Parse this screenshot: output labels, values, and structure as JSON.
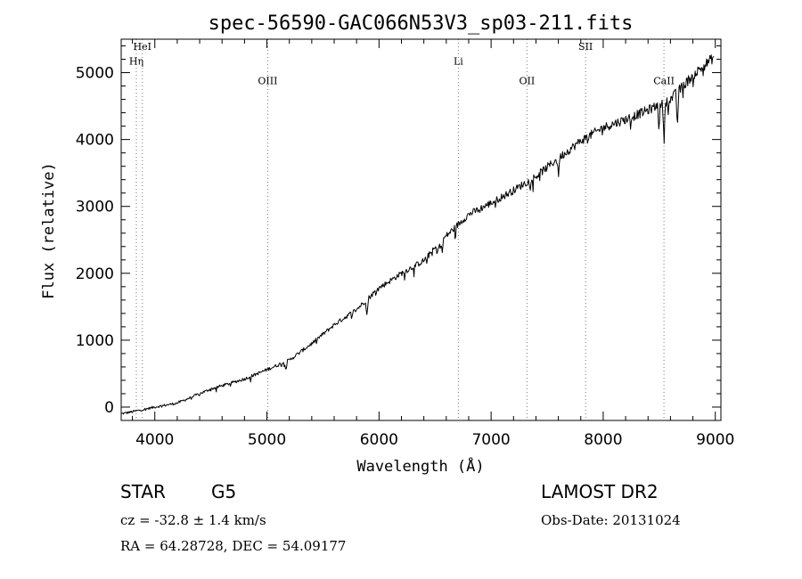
{
  "chart_data": {
    "type": "line",
    "title": "spec-56590-GAC066N53V3_sp03-211.fits",
    "xlabel": "Wavelength (Å)",
    "ylabel": "Flux (relative)",
    "xlim": [
      3700,
      9050
    ],
    "ylim": [
      -200,
      5500
    ],
    "xticks": [
      4000,
      5000,
      6000,
      7000,
      8000,
      9000
    ],
    "yticks": [
      0,
      1000,
      2000,
      3000,
      4000,
      5000
    ],
    "grid": false,
    "spectrum_anchors": {
      "x": [
        3700,
        3800,
        4000,
        4200,
        4500,
        4800,
        5000,
        5200,
        5400,
        5600,
        5800,
        6000,
        6200,
        6400,
        6600,
        6800,
        7000,
        7200,
        7400,
        7600,
        7800,
        8000,
        8200,
        8400,
        8600,
        8800,
        9000
      ],
      "y": [
        -100,
        -70,
        0,
        60,
        270,
        420,
        560,
        700,
        950,
        1230,
        1460,
        1780,
        2000,
        2190,
        2560,
        2880,
        3050,
        3240,
        3450,
        3720,
        3980,
        4180,
        4300,
        4440,
        4600,
        4960,
        5250
      ]
    },
    "absorption_features": [
      {
        "x": 5170,
        "depth": 120
      },
      {
        "x": 5893,
        "depth": 260
      },
      {
        "x": 6520,
        "depth": 160
      },
      {
        "x": 6563,
        "depth": 200
      },
      {
        "x": 7600,
        "depth": 280
      },
      {
        "x": 8498,
        "depth": 350
      },
      {
        "x": 8542,
        "depth": 650
      },
      {
        "x": 8662,
        "depth": 550
      }
    ],
    "line_markers": [
      {
        "label": "HeI",
        "x": 3889,
        "label_y": 5340
      },
      {
        "label": "Hη",
        "x": 3835,
        "label_y": 5120
      },
      {
        "label": "OIII",
        "x": 5007,
        "label_y": 4830
      },
      {
        "label": "Li",
        "x": 6708,
        "label_y": 5120
      },
      {
        "label": "OII",
        "x": 7320,
        "label_y": 4830
      },
      {
        "label": "SII",
        "x": 7843,
        "label_y": 5340
      },
      {
        "label": "CaII",
        "x": 8542,
        "label_y": 4830
      }
    ]
  },
  "info": {
    "object_type": "STAR",
    "subclass": "G5",
    "survey": "LAMOST DR2",
    "redshift": "cz = -32.8 ± 1.4 km/s",
    "obs_date": "Obs-Date: 20131024",
    "coords": "RA =  64.28728, DEC =  54.09177"
  }
}
